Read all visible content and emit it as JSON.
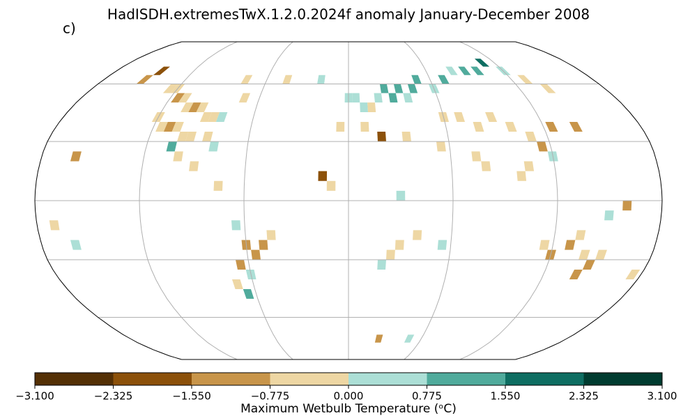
{
  "chart_data": {
    "type": "gridded-map",
    "title": "HadISDH.extremesTwX.1.2.0.2024f anomaly January-December 2008",
    "panel_label": "c)",
    "projection": "robinson",
    "graticule": {
      "lon": [
        -180,
        -120,
        -60,
        0,
        60,
        120,
        180
      ],
      "lat": [
        -60,
        -30,
        0,
        30,
        60
      ]
    },
    "cells": {
      "lon": [
        -125,
        -120,
        -115,
        -110,
        -105,
        -100,
        -95,
        -90,
        -85,
        -80,
        -120,
        -115,
        -110,
        -105,
        -100,
        -95,
        -85,
        -80,
        -100,
        -90,
        -75,
        -70,
        -150,
        -145,
        -160,
        -105,
        -45,
        -20,
        0,
        5,
        10,
        15,
        20,
        25,
        30,
        35,
        40,
        45,
        50,
        60,
        70,
        80,
        90,
        100,
        110,
        120,
        130,
        140,
        10,
        20,
        35,
        -5,
        60,
        70,
        80,
        90,
        100,
        110,
        115,
        120,
        75,
        80,
        100,
        105,
        125,
        140,
        55,
        -15,
        -10,
        30,
        25,
        20,
        30,
        40,
        55,
        -75,
        -65,
        -60,
        -55,
        -50,
        -45,
        -65,
        -60,
        -70,
        -65,
        -170,
        -160,
        115,
        120,
        130,
        135,
        140,
        145,
        150,
        140,
        175,
        150,
        160,
        25,
        50
      ],
      "lat": [
        57.5,
        57.5,
        52.5,
        52.5,
        47.5,
        47.5,
        47.5,
        42.5,
        42.5,
        42.5,
        42.5,
        37.5,
        37.5,
        37.5,
        32.5,
        32.5,
        32.5,
        27.5,
        22.5,
        17.5,
        62.5,
        52.5,
        62.5,
        67.5,
        22.5,
        27.5,
        62.5,
        62.5,
        52.5,
        52.5,
        47.5,
        47.5,
        52.5,
        57.5,
        52.5,
        57.5,
        52.5,
        57.5,
        62.5,
        57.5,
        62.5,
        67.5,
        67.5,
        67.5,
        72.5,
        67.5,
        62.5,
        57.5,
        37.5,
        32.5,
        32.5,
        37.5,
        42.5,
        42.5,
        37.5,
        42.5,
        37.5,
        32.5,
        27.5,
        22.5,
        22.5,
        17.5,
        12.5,
        17.5,
        37.5,
        37.5,
        27.5,
        12.5,
        7.5,
        2.5,
        -27.5,
        -32.5,
        -22.5,
        -17.5,
        -22.5,
        7.5,
        -12.5,
        -22.5,
        -27.5,
        -22.5,
        -17.5,
        -32.5,
        -37.5,
        -42.5,
        -47.5,
        -12.5,
        -22.5,
        -22.5,
        -27.5,
        -22.5,
        -17.5,
        -27.5,
        -32.5,
        -27.5,
        -37.5,
        -37.5,
        -7.5,
        -2.5,
        -72.5,
        -72.5
      ],
      "values": [
        -0.4,
        -0.4,
        -1.2,
        -0.4,
        -0.4,
        -1.2,
        -0.4,
        -0.4,
        -0.4,
        0.4,
        -0.4,
        -0.4,
        -1.2,
        -0.4,
        -0.4,
        -0.4,
        -0.4,
        0.4,
        -0.4,
        -0.4,
        -0.4,
        -0.4,
        -1.2,
        -2.0,
        -1.2,
        1.2,
        -0.4,
        0.4,
        0.4,
        0.4,
        0.4,
        -0.4,
        0.4,
        1.2,
        1.2,
        1.2,
        0.4,
        1.2,
        1.2,
        0.4,
        1.2,
        0.4,
        1.2,
        1.2,
        2.0,
        0.4,
        -0.4,
        -0.4,
        -0.4,
        -2.0,
        -0.4,
        -0.4,
        -0.4,
        -0.4,
        -0.4,
        -0.4,
        -0.4,
        -0.4,
        -1.2,
        0.4,
        -0.4,
        -0.4,
        -0.4,
        -0.4,
        -1.2,
        -1.2,
        -0.4,
        -2.0,
        -0.4,
        0.4,
        -0.4,
        0.4,
        -0.4,
        -0.4,
        0.4,
        -0.4,
        0.4,
        -1.2,
        -1.2,
        -1.2,
        -0.4,
        -1.2,
        0.4,
        -0.4,
        1.2,
        -0.4,
        0.4,
        -0.4,
        -1.2,
        -1.2,
        -0.4,
        -0.4,
        -1.2,
        -0.4,
        -1.2,
        -0.4,
        0.4,
        -1.2,
        -1.2,
        0.4
      ]
    },
    "colorbar": {
      "label": "Maximum Wetbulb Temperature (ᵒC)",
      "ticks": [
        {
          "value": -3.1,
          "label": "−3.100"
        },
        {
          "value": -2.325,
          "label": "−2.325"
        },
        {
          "value": -1.55,
          "label": "−1.550"
        },
        {
          "value": -0.775,
          "label": "−0.775"
        },
        {
          "value": 0,
          "label": "0.000"
        },
        {
          "value": 0.775,
          "label": "0.775"
        },
        {
          "value": 1.55,
          "label": "1.550"
        },
        {
          "value": 2.325,
          "label": "2.325"
        },
        {
          "value": 3.1,
          "label": "3.100"
        }
      ],
      "colors": [
        "#543005",
        "#8c510a",
        "#c8954a",
        "#eed7a4",
        "#acdfd6",
        "#50ab9c",
        "#0e6e62",
        "#003c30"
      ]
    }
  }
}
